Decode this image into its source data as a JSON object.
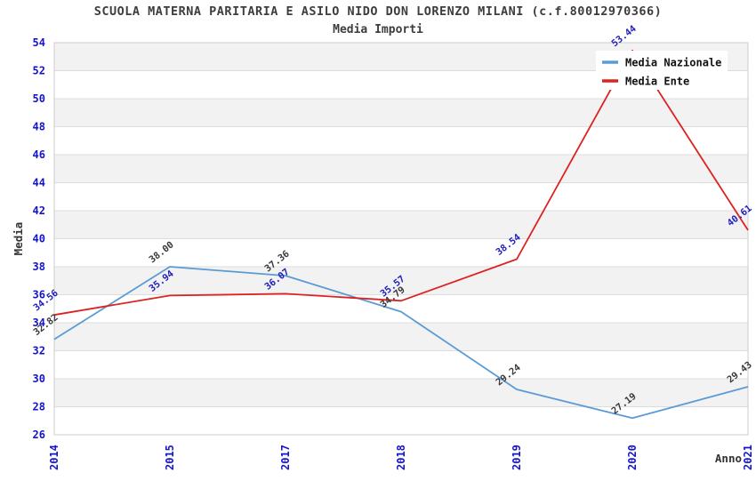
{
  "title": "SCUOLA MATERNA PARITARIA E ASILO NIDO DON LORENZO MILANI (c.f.80012970366)",
  "subtitle": "Media Importi",
  "chart_data": {
    "type": "line",
    "title": "SCUOLA MATERNA PARITARIA E ASILO NIDO DON LORENZO MILANI (c.f.80012970366)",
    "subtitle": "Media Importi",
    "categories": [
      "2014",
      "2015",
      "2017",
      "2018",
      "2019",
      "2020",
      "2021"
    ],
    "series": [
      {
        "name": "Media Nazionale",
        "color": "#5B9BD5",
        "label_color": "#3a3a3a",
        "values": [
          32.82,
          38.0,
          37.36,
          34.79,
          29.24,
          27.19,
          29.43
        ]
      },
      {
        "name": "Media Ente",
        "color": "#DD2222",
        "label_color": "#2222BB",
        "values": [
          34.56,
          35.94,
          36.07,
          35.57,
          38.54,
          53.44,
          40.61
        ]
      }
    ],
    "xlabel": "Anno",
    "ylabel": "Media",
    "ylim": [
      26,
      54
    ],
    "ytick_step": 2,
    "grid": true,
    "legend_position": "top-right",
    "styles": {
      "tick_label_color": "#1414CC",
      "band_fill": "#F2F2F2",
      "band_alt_fill": "#FFFFFF",
      "gridline_color": "#DDDDDD",
      "plot_border_color": "#CCCCCC",
      "legend_bg": "#FFFFFF",
      "line_width": 1.8
    }
  }
}
